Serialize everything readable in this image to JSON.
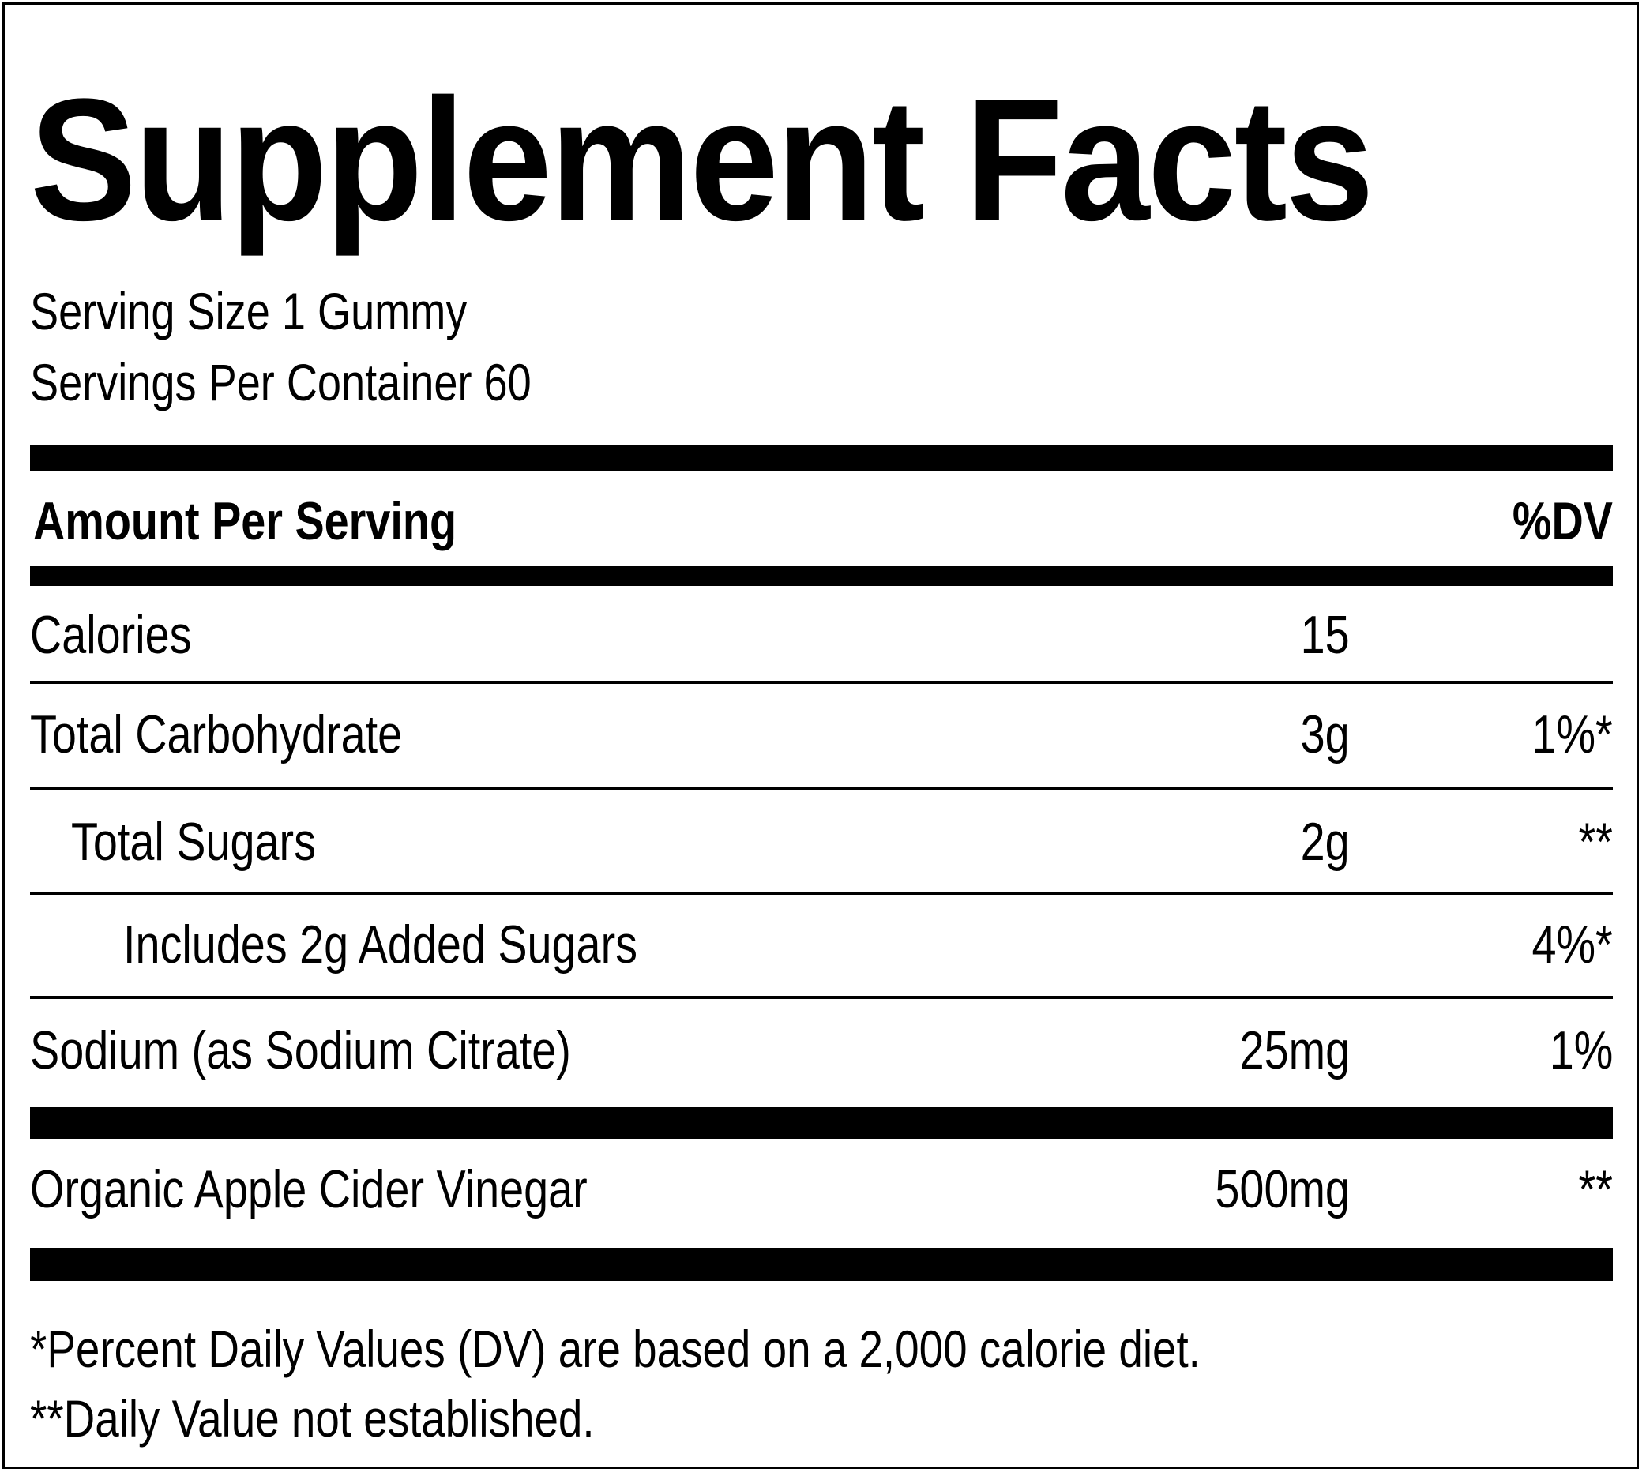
{
  "label": {
    "title": "Supplement Facts",
    "serving_size": "Serving Size 1 Gummy",
    "servings_per_container": "Servings Per Container 60"
  },
  "header": {
    "amount_label": "Amount Per Serving",
    "dv_label": "%DV"
  },
  "rows": [
    {
      "name": "Calories",
      "amount": "15",
      "dv": ""
    },
    {
      "name": "Total Carbohydrate",
      "amount": "3g",
      "dv": "1%*"
    },
    {
      "name": "Total Sugars",
      "amount": "2g",
      "dv": "**"
    },
    {
      "name": "Includes 2g Added Sugars",
      "amount": "",
      "dv": "4%*"
    },
    {
      "name": "Sodium (as Sodium Citrate)",
      "amount": "25mg",
      "dv": "1%"
    },
    {
      "name": "Organic Apple Cider Vinegar",
      "amount": "500mg",
      "dv": "**"
    }
  ],
  "footnotes": {
    "dv_note": "*Percent Daily Values (DV) are based on a 2,000 calorie diet.",
    "not_established": "**Daily Value not established."
  }
}
